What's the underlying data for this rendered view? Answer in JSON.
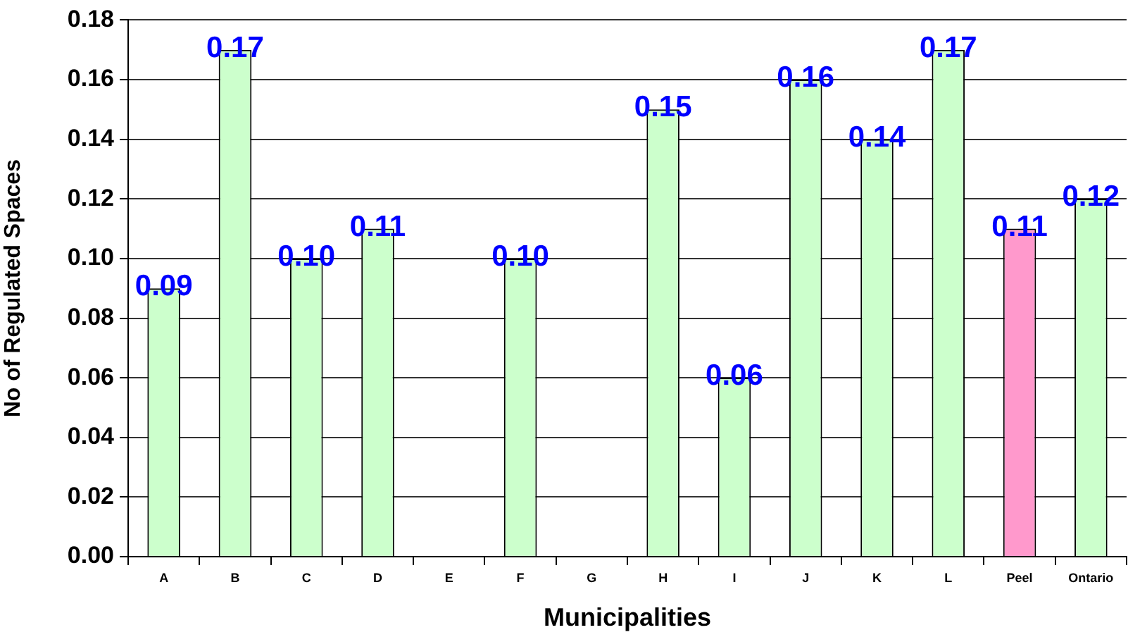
{
  "chart_data": {
    "type": "bar",
    "xlabel": "Municipalities",
    "ylabel": "No of Regulated Spaces",
    "categories": [
      "A",
      "B",
      "C",
      "D",
      "E",
      "F",
      "G",
      "H",
      "I",
      "J",
      "K",
      "L",
      "Peel",
      "Ontario"
    ],
    "values": [
      0.09,
      0.17,
      0.1,
      0.11,
      null,
      0.1,
      null,
      0.15,
      0.06,
      0.16,
      0.14,
      0.17,
      0.11,
      0.12
    ],
    "colors": [
      "#ccffcc",
      "#ccffcc",
      "#ccffcc",
      "#ccffcc",
      "#ccffcc",
      "#ccffcc",
      "#ccffcc",
      "#ccffcc",
      "#ccffcc",
      "#ccffcc",
      "#ccffcc",
      "#ccffcc",
      "#ff99cc",
      "#ccffcc"
    ],
    "value_labels": [
      "0.09",
      "0.17",
      "0.10",
      "0.11",
      null,
      "0.10",
      null,
      "0.15",
      "0.06",
      "0.16",
      "0.14",
      "0.17",
      "0.11",
      "0.12"
    ],
    "ylim": [
      0,
      0.18
    ],
    "yticks": [
      {
        "value": 0,
        "label": "0.00"
      },
      {
        "value": 0.02,
        "label": "0.02"
      },
      {
        "value": 0.04,
        "label": "0.04"
      },
      {
        "value": 0.06,
        "label": "0.06"
      },
      {
        "value": 0.08,
        "label": "0.08"
      },
      {
        "value": 0.1,
        "label": "0.10"
      },
      {
        "value": 0.12,
        "label": "0.12"
      },
      {
        "value": 0.14,
        "label": "0.14"
      },
      {
        "value": 0.16,
        "label": "0.16"
      },
      {
        "value": 0.18,
        "label": "0.18"
      }
    ],
    "grid": "y"
  }
}
